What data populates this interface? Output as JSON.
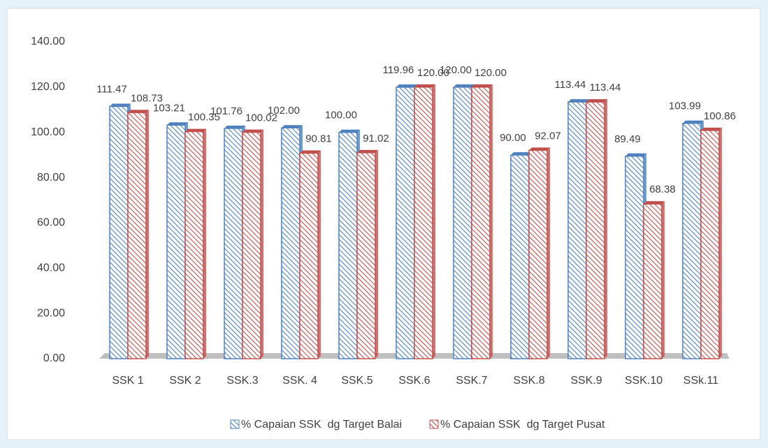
{
  "chart_data": {
    "type": "bar",
    "categories": [
      "SSK 1",
      "SSK 2",
      "SSK.3",
      "SSK. 4",
      "SSK.5",
      "SSK.6",
      "SSK.7",
      "SSK.8",
      "SSK.9",
      "SSK.10",
      "SSk.11"
    ],
    "series": [
      {
        "name": "% Capaian SSK  dg Target Balai",
        "color": "#4f81bd",
        "values": [
          111.47,
          103.21,
          101.76,
          102.0,
          100.0,
          119.96,
          120.0,
          90.0,
          113.44,
          89.49,
          103.99
        ],
        "value_labels": [
          "111.47",
          "103.21",
          "101.76",
          "102.00",
          "100.00",
          "119.96",
          "120.00",
          "90.00",
          "113.44",
          "89.49",
          "103.99"
        ]
      },
      {
        "name": "% Capaian SSK  dg Target Pusat",
        "color": "#c0504d",
        "values": [
          108.73,
          100.35,
          100.02,
          90.81,
          91.02,
          120.0,
          120.0,
          92.07,
          113.44,
          68.38,
          100.86
        ],
        "value_labels": [
          "108.73",
          "100.35",
          "100.02",
          "90.81",
          "91.02",
          "120.00",
          "120.00",
          "92.07",
          "113.44",
          "68.38",
          "100.86"
        ]
      }
    ],
    "ylim": [
      0,
      140
    ],
    "yticks": [
      {
        "value": 0,
        "label": "0.00"
      },
      {
        "value": 20,
        "label": "20.00"
      },
      {
        "value": 40,
        "label": "40.00"
      },
      {
        "value": 60,
        "label": "60.00"
      },
      {
        "value": 80,
        "label": "80.00"
      },
      {
        "value": 100,
        "label": "100.00"
      },
      {
        "value": 120,
        "label": "120.00"
      },
      {
        "value": 140,
        "label": "140.00"
      }
    ],
    "grid": false,
    "legend": "bottom"
  }
}
